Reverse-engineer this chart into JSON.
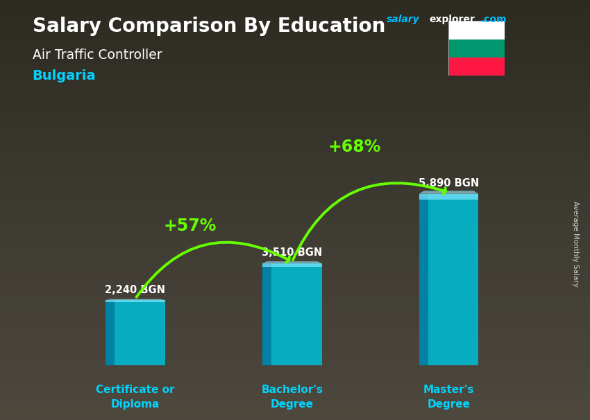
{
  "title_line1": "Salary Comparison By Education",
  "subtitle": "Air Traffic Controller",
  "country": "Bulgaria",
  "categories": [
    "Certificate or\nDiploma",
    "Bachelor's\nDegree",
    "Master's\nDegree"
  ],
  "values": [
    2240,
    3510,
    5890
  ],
  "value_labels": [
    "2,240 BGN",
    "3,510 BGN",
    "5,890 BGN"
  ],
  "pct_changes": [
    "+57%",
    "+68%"
  ],
  "bar_face_color": "#00bcd4",
  "bar_left_color": "#007a9e",
  "bar_top_color": "#00e5ff",
  "arrow_color": "#66ff00",
  "pct_color": "#aaff00",
  "title_color": "#ffffff",
  "subtitle_color": "#ffffff",
  "country_color": "#00d4ff",
  "value_label_color": "#ffffff",
  "category_color": "#00d4ff",
  "bg_color_top": "#7a7060",
  "bg_color_bottom": "#3a3020",
  "salary_label": "Average Monthly Salary",
  "brand_salary": "salary",
  "brand_explorer": "explorer",
  "brand_com": ".com",
  "ylim": [
    0,
    7500
  ],
  "bar_width": 0.38,
  "flag_colors": [
    "#ffffff",
    "#00966e",
    "#ff1744"
  ],
  "x_positions": [
    1,
    2,
    3
  ],
  "fig_width": 8.5,
  "fig_height": 6.06,
  "dpi": 100
}
